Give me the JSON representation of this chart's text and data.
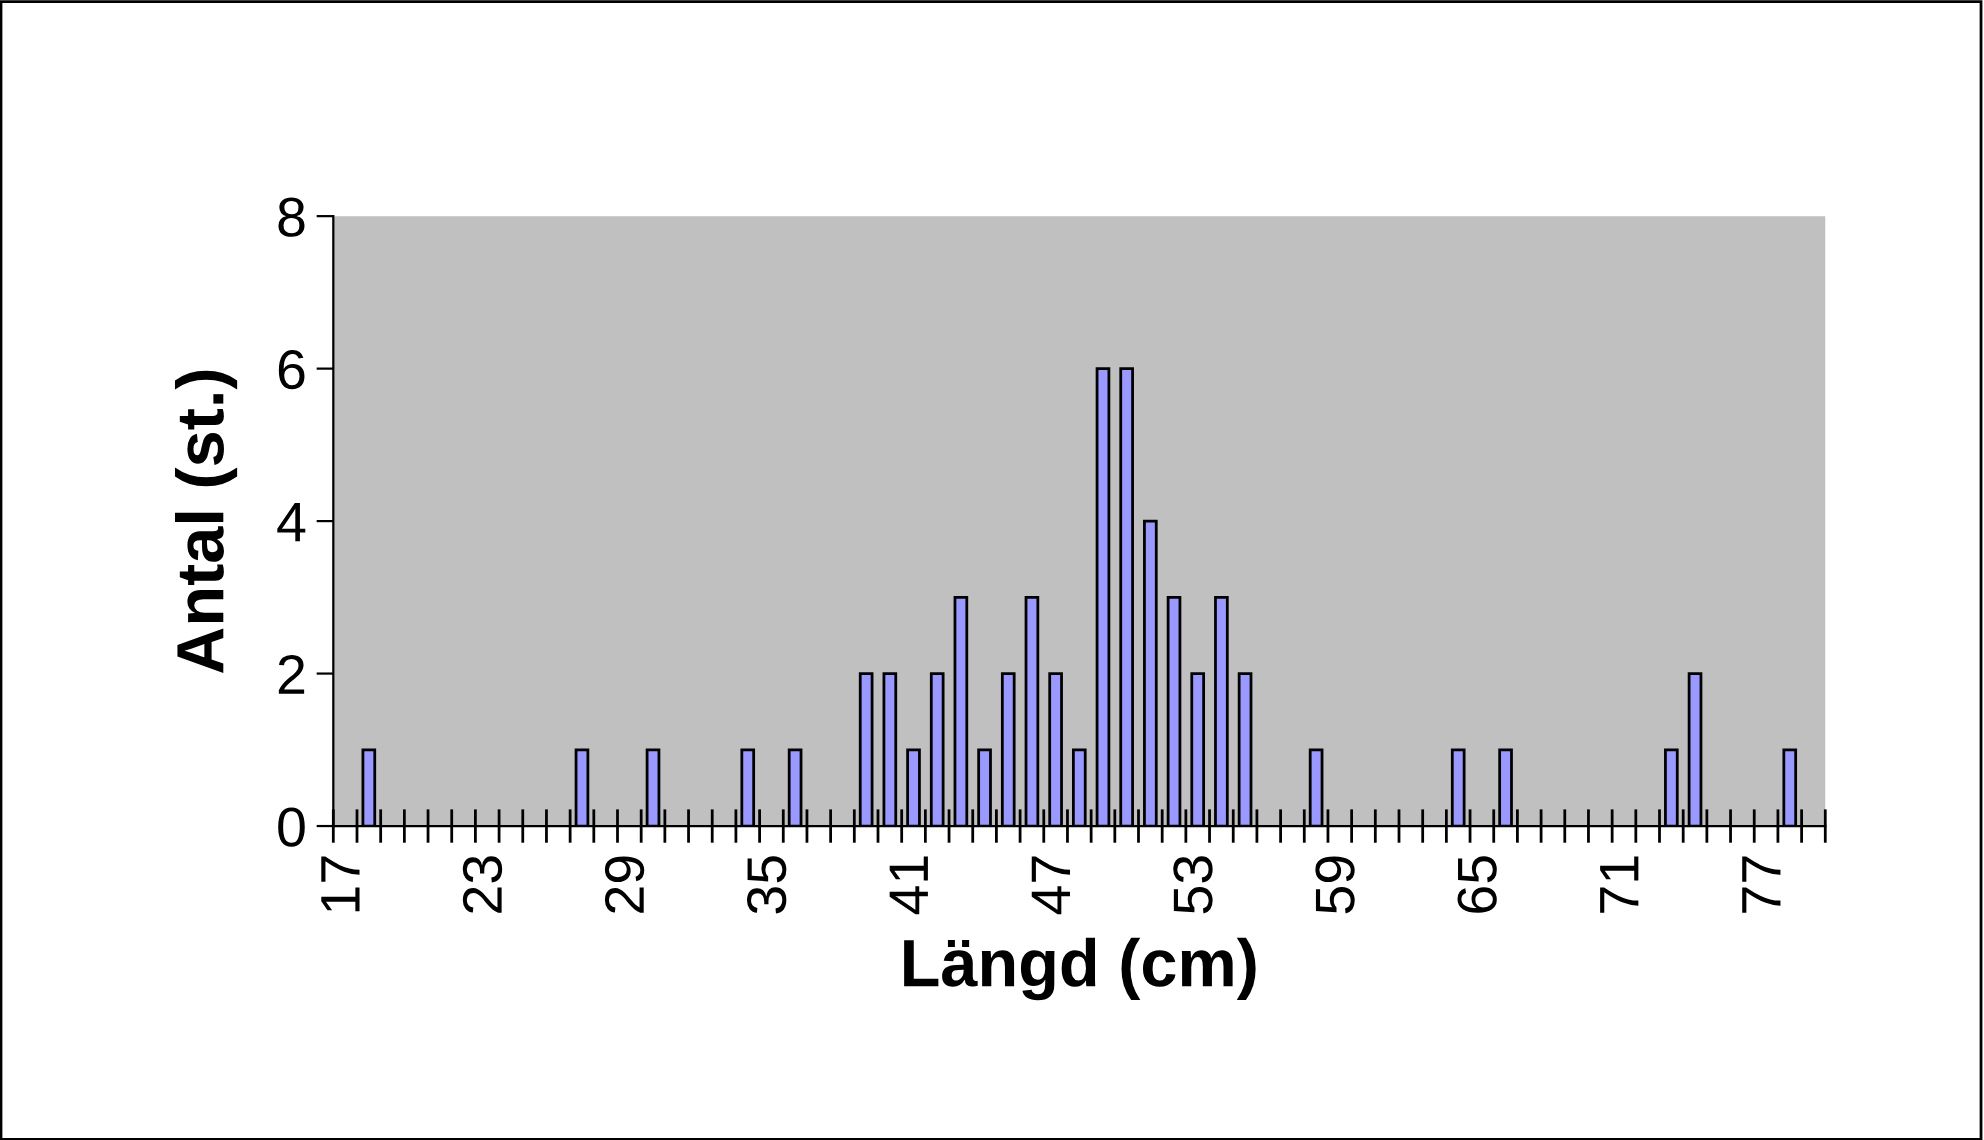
{
  "chart_data": {
    "type": "bar",
    "xlabel": "Längd (cm)",
    "ylabel": "Antal (st.)",
    "categories": [
      "17",
      null,
      null,
      null,
      null,
      null,
      "23",
      null,
      null,
      null,
      null,
      null,
      "29",
      null,
      null,
      null,
      null,
      null,
      "35",
      null,
      null,
      null,
      null,
      null,
      "41",
      null,
      null,
      null,
      null,
      null,
      "47",
      null,
      null,
      null,
      null,
      null,
      "53",
      null,
      null,
      null,
      null,
      null,
      "59",
      null,
      null,
      null,
      null,
      null,
      "65",
      null,
      null,
      null,
      null,
      null,
      "71",
      null,
      null,
      null,
      null,
      null,
      "77",
      null,
      null
    ],
    "values": [
      0,
      1,
      0,
      0,
      0,
      0,
      0,
      0,
      0,
      0,
      1,
      0,
      0,
      1,
      0,
      0,
      0,
      1,
      0,
      1,
      0,
      0,
      2,
      2,
      1,
      2,
      3,
      1,
      2,
      3,
      2,
      1,
      6,
      6,
      4,
      3,
      2,
      3,
      2,
      0,
      0,
      1,
      0,
      0,
      0,
      0,
      0,
      1,
      0,
      1,
      0,
      0,
      0,
      0,
      0,
      0,
      1,
      2,
      0,
      0,
      0,
      1,
      0
    ],
    "color": "#9999ff",
    "ylim": [
      0,
      8
    ],
    "yticks": [
      0,
      2,
      4,
      6,
      8
    ],
    "grid": false
  }
}
